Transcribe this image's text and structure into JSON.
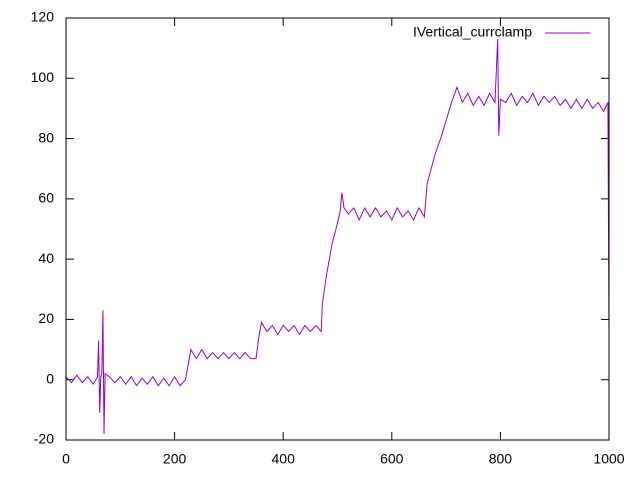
{
  "chart_data": {
    "type": "line",
    "xlim": [
      0,
      1000
    ],
    "xticks": [
      0,
      200,
      400,
      600,
      800,
      1000
    ],
    "ylim": [
      -20,
      120
    ],
    "yticks": [
      -20,
      0,
      20,
      40,
      60,
      80,
      100,
      120
    ],
    "legend": "top-right",
    "series": [
      {
        "name": "IVertical_currclamp",
        "color": "#9400d3",
        "x": [
          0,
          10,
          20,
          30,
          40,
          50,
          58,
          60,
          62,
          64,
          66,
          68,
          70,
          72,
          80,
          90,
          100,
          110,
          120,
          130,
          140,
          150,
          160,
          170,
          180,
          190,
          200,
          210,
          220,
          225,
          230,
          240,
          250,
          260,
          270,
          280,
          290,
          300,
          310,
          320,
          330,
          340,
          350,
          355,
          360,
          370,
          380,
          390,
          400,
          410,
          420,
          430,
          440,
          450,
          460,
          470,
          472,
          480,
          490,
          500,
          505,
          508,
          512,
          520,
          530,
          540,
          550,
          560,
          570,
          580,
          590,
          600,
          610,
          620,
          630,
          640,
          650,
          660,
          665,
          680,
          690,
          700,
          710,
          720,
          730,
          740,
          750,
          760,
          770,
          780,
          790,
          795,
          797,
          800,
          810,
          820,
          830,
          840,
          850,
          860,
          870,
          880,
          890,
          900,
          910,
          920,
          930,
          940,
          950,
          960,
          970,
          980,
          990,
          998,
          1000
        ],
        "values": [
          1,
          -1,
          1.5,
          -1,
          1,
          -1.5,
          1,
          13,
          -11,
          1,
          2,
          23,
          -18,
          2,
          1,
          -1,
          1,
          -1.5,
          1,
          -2,
          0.5,
          -1.5,
          1,
          -2,
          0.5,
          -2,
          1,
          -2,
          0,
          5,
          10,
          7,
          10,
          7,
          9,
          7,
          9,
          7,
          9,
          7,
          9,
          7,
          7,
          14,
          19,
          16,
          18,
          15,
          18,
          16,
          18,
          15,
          18,
          16,
          18,
          16,
          25,
          35,
          45,
          52,
          56,
          62,
          57,
          55,
          57,
          53,
          57,
          54,
          57,
          54,
          56,
          53,
          57,
          54,
          56,
          53,
          57,
          54,
          65,
          75,
          80,
          86,
          92,
          97,
          92,
          95,
          91,
          94,
          91,
          95,
          92,
          113,
          81,
          93,
          92,
          95,
          91,
          94,
          92,
          95,
          91,
          94,
          92,
          94,
          91,
          93,
          90,
          93,
          90,
          93,
          90,
          92,
          89,
          92,
          15
        ]
      }
    ]
  }
}
